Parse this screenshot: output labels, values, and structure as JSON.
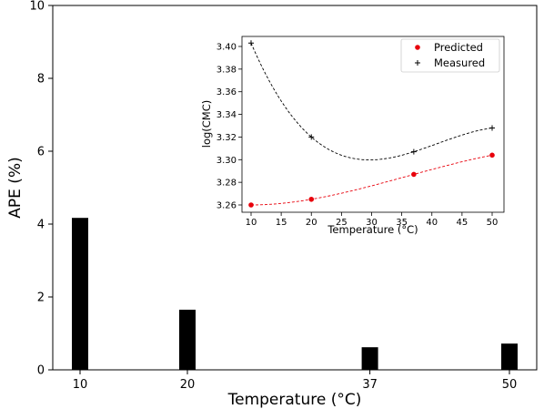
{
  "chart_data": [
    {
      "type": "bar",
      "categories": [
        "10",
        "20",
        "37",
        "50"
      ],
      "x": [
        10,
        20,
        37,
        50
      ],
      "values": [
        4.17,
        1.65,
        0.62,
        0.72
      ],
      "title": "",
      "xlabel": "Temperature (°C)",
      "ylabel": "APE (%)",
      "ylim": [
        0,
        10
      ],
      "yticks": [
        0,
        2,
        4,
        6,
        8,
        10
      ],
      "xticks": [
        10,
        20,
        37,
        50
      ],
      "bar_color": "#000000",
      "grid": false
    },
    {
      "type": "scatter",
      "title": "",
      "xlabel": "Temperature (°C)",
      "ylabel": "log(CMC)",
      "xlim": [
        8.5,
        52
      ],
      "ylim": [
        3.253,
        3.41
      ],
      "xticks": [
        10,
        15,
        20,
        25,
        30,
        35,
        40,
        45,
        50
      ],
      "yticks": [
        "3.26",
        "3.28",
        "3.30",
        "3.32",
        "3.34",
        "3.36",
        "3.38",
        "3.40"
      ],
      "legend_position": "top-right",
      "grid": false,
      "series": [
        {
          "name": "Predicted",
          "marker": "circle",
          "color": "#e8000b",
          "x": [
            10,
            20,
            37,
            50
          ],
          "values": [
            3.26,
            3.265,
            3.287,
            3.304
          ],
          "fit_color": "#e8000b"
        },
        {
          "name": "Measured",
          "marker": "plus",
          "color": "#000000",
          "x": [
            10,
            20,
            37,
            50
          ],
          "values": [
            3.403,
            3.32,
            3.307,
            3.328
          ],
          "fit_color": "#000000"
        }
      ]
    }
  ]
}
